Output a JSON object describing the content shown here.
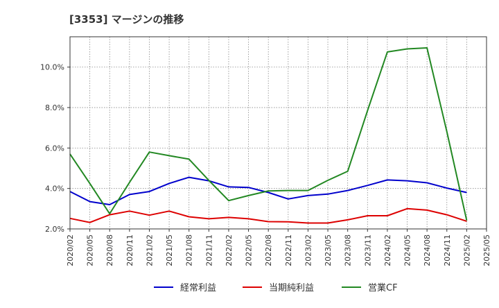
{
  "chart_data": {
    "type": "line",
    "title": "[3353]  マージンの推移",
    "x": [
      "2020/02",
      "2020/05",
      "2020/08",
      "2020/11",
      "2021/02",
      "2021/05",
      "2021/08",
      "2021/11",
      "2022/02",
      "2022/05",
      "2022/08",
      "2022/11",
      "2023/02",
      "2023/05",
      "2023/08",
      "2023/11",
      "2024/02",
      "2024/05",
      "2024/08",
      "2024/11",
      "2025/02"
    ],
    "xticks": [
      "2020/02",
      "2020/05",
      "2020/08",
      "2020/11",
      "2021/02",
      "2021/05",
      "2021/08",
      "2021/11",
      "2022/02",
      "2022/05",
      "2022/08",
      "2022/11",
      "2023/02",
      "2023/05",
      "2023/08",
      "2023/11",
      "2024/02",
      "2024/05",
      "2024/08",
      "2024/11",
      "2025/02",
      "2025/05"
    ],
    "yticks": [
      {
        "value": 2.0,
        "label": "2.0%"
      },
      {
        "value": 4.0,
        "label": "4.0%"
      },
      {
        "value": 6.0,
        "label": "6.0%"
      },
      {
        "value": 8.0,
        "label": "8.0%"
      },
      {
        "value": 10.0,
        "label": "10.0%"
      }
    ],
    "ylim": [
      2.0,
      11.5
    ],
    "grid": true,
    "legend_position": "bottom",
    "series": [
      {
        "name": "経常利益",
        "color": "#0000cc",
        "values": [
          3.85,
          3.35,
          3.2,
          3.7,
          3.85,
          4.25,
          4.55,
          4.38,
          4.08,
          4.05,
          3.8,
          3.48,
          3.65,
          3.72,
          3.9,
          4.15,
          4.42,
          4.38,
          4.28,
          4.02,
          3.8
        ]
      },
      {
        "name": "当期純利益",
        "color": "#dd0000",
        "values": [
          2.52,
          2.32,
          2.7,
          2.88,
          2.68,
          2.88,
          2.6,
          2.5,
          2.57,
          2.5,
          2.36,
          2.35,
          2.29,
          2.29,
          2.45,
          2.65,
          2.65,
          3.0,
          2.93,
          2.7,
          2.38
        ]
      },
      {
        "name": "営業CF",
        "color": "#228822",
        "values": [
          5.7,
          4.25,
          2.75,
          4.3,
          5.8,
          5.62,
          5.45,
          4.4,
          3.4,
          3.65,
          3.88,
          3.9,
          3.9,
          4.4,
          4.85,
          7.85,
          10.75,
          10.9,
          10.95,
          6.8,
          2.42
        ]
      }
    ]
  }
}
